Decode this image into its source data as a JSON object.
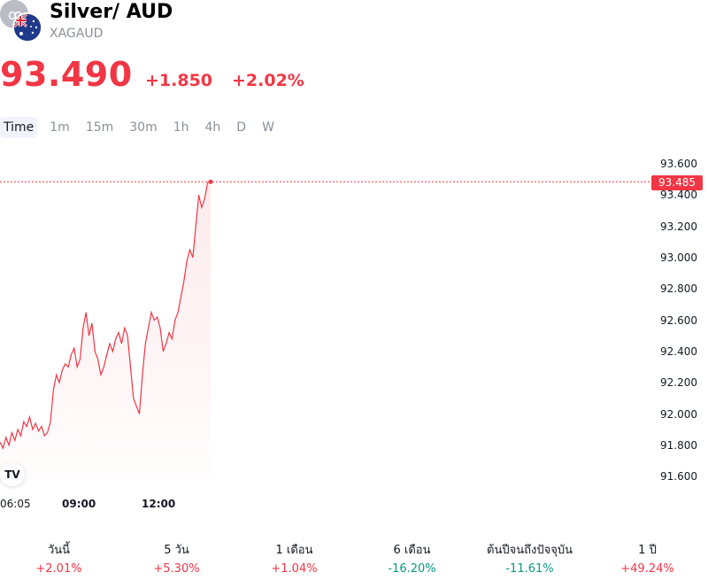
{
  "header": {
    "title": "Silver/ AUD",
    "ticker": "XAGAUD"
  },
  "quote": {
    "price": "93.490",
    "change_abs": "+1.850",
    "change_pct": "+2.02%"
  },
  "timeframes": [
    "Time",
    "1m",
    "15m",
    "30m",
    "1h",
    "4h",
    "D",
    "W"
  ],
  "active_timeframe": "Time",
  "chart_data": {
    "type": "line",
    "y_ticks": [
      "93.600",
      "93.400",
      "93.200",
      "93.000",
      "92.800",
      "92.600",
      "92.400",
      "92.200",
      "92.000",
      "91.800",
      "91.600"
    ],
    "ylim": [
      91.6,
      93.6
    ],
    "x_ticks": [
      "06:05",
      "09:00",
      "12:00"
    ],
    "last_price_label": "93.485",
    "last_price": 93.485,
    "series": [
      {
        "values": [
          91.82,
          91.78,
          91.85,
          91.8,
          91.88,
          91.83,
          91.9,
          91.86,
          91.95,
          91.92,
          91.98,
          91.9,
          91.94,
          91.89,
          91.92,
          91.86,
          91.88,
          91.95,
          92.15,
          92.25,
          92.2,
          92.28,
          92.32,
          92.3,
          92.38,
          92.42,
          92.3,
          92.35,
          92.55,
          92.65,
          92.5,
          92.58,
          92.4,
          92.35,
          92.25,
          92.3,
          92.38,
          92.45,
          92.4,
          92.48,
          92.52,
          92.45,
          92.55,
          92.5,
          92.3,
          92.1,
          92.05,
          92.0,
          92.25,
          92.45,
          92.55,
          92.65,
          92.6,
          92.62,
          92.55,
          92.4,
          92.45,
          92.52,
          92.48,
          92.6,
          92.65,
          92.75,
          92.85,
          92.98,
          93.05,
          93.0,
          93.2,
          93.4,
          93.32,
          93.38,
          93.48,
          93.485
        ]
      }
    ],
    "line_color": "#f23645"
  },
  "performance": [
    {
      "label": "วันนี้",
      "value": "+2.01%",
      "dir": "up"
    },
    {
      "label": "5 วัน",
      "value": "+5.30%",
      "dir": "up"
    },
    {
      "label": "1 เดือน",
      "value": "+1.04%",
      "dir": "up"
    },
    {
      "label": "6 เดือน",
      "value": "-16.20%",
      "dir": "down"
    },
    {
      "label": "ต้นปีจนถึงปัจจุบัน",
      "value": "-11.61%",
      "dir": "down"
    },
    {
      "label": "1 ปี",
      "value": "+49.24%",
      "dir": "up"
    }
  ],
  "logo_text": "TV"
}
